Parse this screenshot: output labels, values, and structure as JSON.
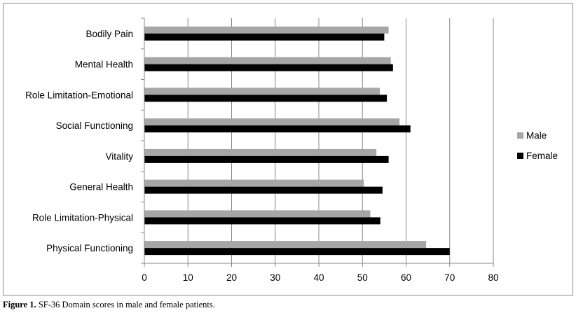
{
  "chart_data": {
    "type": "bar",
    "orientation": "horizontal",
    "categories": [
      "Bodily Pain",
      "Mental Health",
      "Role Limitation-Emotional",
      "Social Functioning",
      "Vitality",
      "General Health",
      "Role Limitation-Physical",
      "Physical Functioning"
    ],
    "series": [
      {
        "name": "Male",
        "color": "#a6a6a6",
        "values": [
          56,
          56.5,
          54,
          58.5,
          53.2,
          50.3,
          51.8,
          64.6
        ]
      },
      {
        "name": "Female",
        "color": "#000000",
        "values": [
          55,
          57,
          55.6,
          61,
          56,
          54.6,
          54.1,
          70
        ]
      }
    ],
    "xlim": [
      0,
      80
    ],
    "xticks": [
      0,
      10,
      20,
      30,
      40,
      50,
      60,
      70,
      80
    ],
    "grid": "vertical",
    "legend": "right"
  },
  "caption": {
    "label": "Figure 1.",
    "text": " SF-36 Domain scores in male and female patients."
  }
}
